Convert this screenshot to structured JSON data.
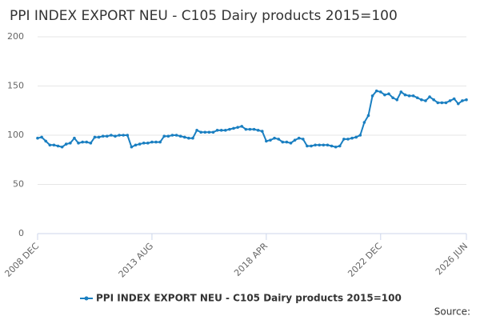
{
  "chart_data": {
    "type": "line",
    "title": "PPI INDEX EXPORT NEU - C105 Dairy products 2015=100",
    "source": "Source:",
    "x": [
      "2008-12",
      "2009-02",
      "2009-04",
      "2009-06",
      "2009-08",
      "2009-10",
      "2009-12",
      "2010-02",
      "2010-04",
      "2010-06",
      "2010-08",
      "2010-10",
      "2010-12",
      "2011-02",
      "2011-04",
      "2011-06",
      "2011-08",
      "2011-10",
      "2011-12",
      "2012-02",
      "2012-04",
      "2012-06",
      "2012-08",
      "2012-10",
      "2012-12",
      "2013-02",
      "2013-04",
      "2013-06",
      "2013-08",
      "2013-10",
      "2013-12",
      "2014-02",
      "2014-04",
      "2014-06",
      "2014-08",
      "2014-10",
      "2014-12",
      "2015-02",
      "2015-04",
      "2015-06",
      "2015-08",
      "2015-10",
      "2015-12",
      "2016-02",
      "2016-04",
      "2016-06",
      "2016-08",
      "2016-10",
      "2016-12",
      "2017-02",
      "2017-04",
      "2017-06",
      "2017-08",
      "2017-10",
      "2017-12",
      "2018-02",
      "2018-04",
      "2018-06",
      "2018-08",
      "2018-10",
      "2018-12",
      "2019-02",
      "2019-04",
      "2019-06",
      "2019-08",
      "2019-10",
      "2019-12",
      "2020-02",
      "2020-04",
      "2020-06",
      "2020-08",
      "2020-10",
      "2020-12",
      "2021-02",
      "2021-04",
      "2021-06",
      "2021-08",
      "2021-10",
      "2021-12",
      "2022-02",
      "2022-04",
      "2022-06",
      "2022-08",
      "2022-10",
      "2022-12",
      "2023-02",
      "2023-04",
      "2023-06",
      "2023-08",
      "2023-10",
      "2023-12",
      "2024-02",
      "2024-04",
      "2024-06",
      "2024-08",
      "2024-10",
      "2024-12",
      "2025-02",
      "2025-04",
      "2025-06",
      "2025-08",
      "2025-10",
      "2025-12",
      "2026-02",
      "2026-04",
      "2026-06"
    ],
    "series": [
      {
        "name": "PPI INDEX EXPORT NEU - C105 Dairy products 2015=100",
        "color": "#1a7fc1",
        "values": [
          97,
          98,
          94,
          90,
          90,
          89,
          88,
          91,
          92,
          97,
          92,
          93,
          93,
          92,
          98,
          98,
          99,
          99,
          100,
          99,
          100,
          100,
          100,
          88,
          90,
          91,
          92,
          92,
          93,
          93,
          93,
          99,
          99,
          100,
          100,
          99,
          98,
          97,
          97,
          105,
          103,
          103,
          103,
          103,
          105,
          105,
          105,
          106,
          107,
          108,
          109,
          106,
          106,
          106,
          105,
          104,
          94,
          95,
          97,
          96,
          93,
          93,
          92,
          95,
          97,
          96,
          89,
          89,
          90,
          90,
          90,
          90,
          89,
          88,
          89,
          96,
          96,
          97,
          98,
          100,
          113,
          120,
          140,
          145,
          144,
          141,
          142,
          138,
          136,
          144,
          141,
          140,
          140,
          138,
          136,
          135,
          139,
          136,
          133,
          133,
          133,
          135,
          137,
          132,
          135,
          136
        ]
      }
    ],
    "xticks": [
      {
        "value": "2008-12",
        "label": "2008 DEC"
      },
      {
        "value": "2013-08",
        "label": "2013 AUG"
      },
      {
        "value": "2018-04",
        "label": "2018 APR"
      },
      {
        "value": "2022-12",
        "label": "2022 DEC"
      },
      {
        "value": "2026-06",
        "label": "2026 JUN"
      }
    ],
    "xlim": [
      "2008-12",
      "2026-06"
    ],
    "ylim": [
      0,
      200
    ],
    "yticks": [
      0,
      50,
      100,
      150,
      200
    ],
    "grid": true
  }
}
